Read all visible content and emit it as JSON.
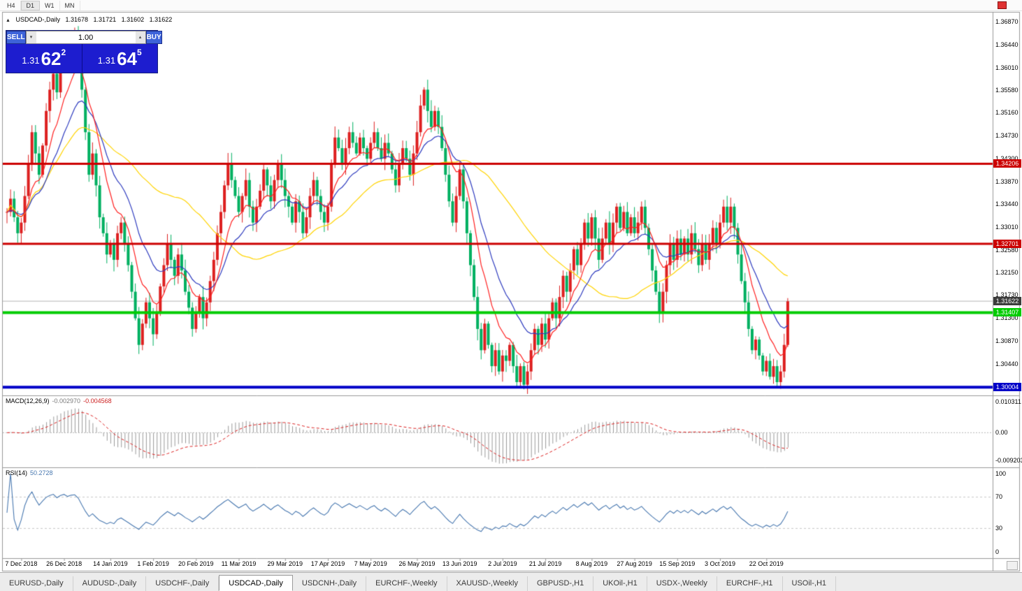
{
  "toolbar": {
    "timeframes": [
      "H4",
      "D1",
      "W1",
      "MN"
    ],
    "active_timeframe": "D1"
  },
  "icons": {
    "collapse_arrow": "▲",
    "spin_up": "▴",
    "spin_down": "▾"
  },
  "chart_header": {
    "symbol": "USDCAD-,Daily",
    "open": "1.31678",
    "high": "1.31721",
    "low": "1.31602",
    "close": "1.31622"
  },
  "one_click": {
    "sell_label": "SELL",
    "buy_label": "BUY",
    "volume": "1.00",
    "price_prefix": "1.31",
    "sell_main": "62",
    "sell_sup": "2",
    "buy_main": "64",
    "buy_sup": "5"
  },
  "macd_panel": {
    "name": "MACD(12,26,9)",
    "main_value": "-0.002970",
    "signal_value": "-0.004568",
    "ticks": [
      "0.010311",
      "0.00",
      "-0.009203"
    ]
  },
  "rsi_panel": {
    "name": "RSI(14)",
    "value": "50.2728",
    "ticks": [
      "100",
      "70",
      "30",
      "0"
    ]
  },
  "price_axis_ticks": [
    "1.36870",
    "1.36440",
    "1.36010",
    "1.35580",
    "1.35160",
    "1.34730",
    "1.34300",
    "1.33870",
    "1.33440",
    "1.33010",
    "1.32580",
    "1.32150",
    "1.31730",
    "1.31300",
    "1.30870",
    "1.30440"
  ],
  "date_labels": [
    {
      "text": "7 Dec 2018",
      "i": 4
    },
    {
      "text": "26 Dec 2018",
      "i": 16
    },
    {
      "text": "14 Jan 2019",
      "i": 29
    },
    {
      "text": "1 Feb 2019",
      "i": 41
    },
    {
      "text": "20 Feb 2019",
      "i": 53
    },
    {
      "text": "11 Mar 2019",
      "i": 65
    },
    {
      "text": "29 Mar 2019",
      "i": 78
    },
    {
      "text": "17 Apr 2019",
      "i": 90
    },
    {
      "text": "7 May 2019",
      "i": 102
    },
    {
      "text": "26 May 2019",
      "i": 115
    },
    {
      "text": "13 Jun 2019",
      "i": 127
    },
    {
      "text": "2 Jul 2019",
      "i": 139
    },
    {
      "text": "21 Jul 2019",
      "i": 151
    },
    {
      "text": "8 Aug 2019",
      "i": 164
    },
    {
      "text": "27 Aug 2019",
      "i": 176
    },
    {
      "text": "15 Sep 2019",
      "i": 188
    },
    {
      "text": "3 Oct 2019",
      "i": 200
    },
    {
      "text": "22 Oct 2019",
      "i": 213
    }
  ],
  "tabs": [
    {
      "label": "EURUSD-,Daily",
      "active": false
    },
    {
      "label": "AUDUSD-,Daily",
      "active": false
    },
    {
      "label": "USDCHF-,Daily",
      "active": false
    },
    {
      "label": "USDCAD-,Daily",
      "active": true
    },
    {
      "label": "USDCNH-,Daily",
      "active": false
    },
    {
      "label": "EURCHF-,Weekly",
      "active": false
    },
    {
      "label": "XAUUSD-,Weekly",
      "active": false
    },
    {
      "label": "GBPUSD-,H1",
      "active": false
    },
    {
      "label": "UKOil-,H1",
      "active": false
    },
    {
      "label": "USDX-,Weekly",
      "active": false
    },
    {
      "label": "EURCHF-,H1",
      "active": false
    },
    {
      "label": "USOil-,H1",
      "active": false
    }
  ],
  "chart_data": {
    "type": "candlestick",
    "symbol": "USDCAD",
    "timeframe": "Daily",
    "title": "USDCAD-,Daily",
    "up_color": "#dd2020",
    "down_color": "#00b060",
    "price_range": [
      1.2985,
      1.3705
    ],
    "closes": [
      1.333,
      1.3355,
      1.332,
      1.329,
      1.331,
      1.336,
      1.342,
      1.348,
      1.344,
      1.34,
      1.3455,
      1.352,
      1.356,
      1.359,
      1.3555,
      1.361,
      1.364,
      1.362,
      1.365,
      1.366,
      1.363,
      1.356,
      1.348,
      1.34,
      1.344,
      1.338,
      1.332,
      1.329,
      1.325,
      1.327,
      1.324,
      1.329,
      1.331,
      1.327,
      1.323,
      1.318,
      1.313,
      1.308,
      1.312,
      1.316,
      1.313,
      1.31,
      1.314,
      1.319,
      1.323,
      1.327,
      1.324,
      1.321,
      1.325,
      1.322,
      1.318,
      1.315,
      1.311,
      1.314,
      1.317,
      1.313,
      1.316,
      1.32,
      1.324,
      1.329,
      1.333,
      1.338,
      1.342,
      1.339,
      1.336,
      1.333,
      1.336,
      1.339,
      1.334,
      1.331,
      1.334,
      1.337,
      1.341,
      1.338,
      1.335,
      1.339,
      1.342,
      1.339,
      1.336,
      1.334,
      1.331,
      1.335,
      1.333,
      1.329,
      1.332,
      1.336,
      1.339,
      1.336,
      1.333,
      1.331,
      1.334,
      1.342,
      1.347,
      1.345,
      1.342,
      1.345,
      1.348,
      1.346,
      1.344,
      1.347,
      1.345,
      1.343,
      1.346,
      1.348,
      1.345,
      1.343,
      1.346,
      1.344,
      1.341,
      1.338,
      1.342,
      1.345,
      1.343,
      1.34,
      1.344,
      1.348,
      1.353,
      1.356,
      1.352,
      1.349,
      1.352,
      1.349,
      1.345,
      1.34,
      1.335,
      1.331,
      1.336,
      1.341,
      1.335,
      1.329,
      1.323,
      1.317,
      1.311,
      1.307,
      1.312,
      1.308,
      1.304,
      1.307,
      1.303,
      1.306,
      1.305,
      1.308,
      1.304,
      1.301,
      1.304,
      1.3005,
      1.303,
      1.307,
      1.311,
      1.308,
      1.312,
      1.309,
      1.313,
      1.316,
      1.313,
      1.317,
      1.321,
      1.318,
      1.322,
      1.326,
      1.323,
      1.327,
      1.331,
      1.328,
      1.332,
      1.328,
      1.324,
      1.328,
      1.331,
      1.327,
      1.331,
      1.334,
      1.33,
      1.333,
      1.329,
      1.332,
      1.329,
      1.331,
      1.334,
      1.33,
      1.326,
      1.322,
      1.318,
      1.314,
      1.318,
      1.323,
      1.327,
      1.324,
      1.328,
      1.325,
      1.328,
      1.325,
      1.329,
      1.326,
      1.323,
      1.327,
      1.324,
      1.327,
      1.33,
      1.327,
      1.331,
      1.334,
      1.331,
      1.334,
      1.33,
      1.325,
      1.32,
      1.316,
      1.311,
      1.307,
      1.309,
      1.306,
      1.303,
      1.305,
      1.302,
      1.304,
      1.301,
      1.303,
      1.308,
      1.3162
    ],
    "moving_averages": [
      {
        "name": "fast",
        "period": 9,
        "kind": "ema",
        "color": "#ff2020"
      },
      {
        "name": "medium",
        "period": 18,
        "kind": "ema",
        "color": "#2e3bbf"
      },
      {
        "name": "slow",
        "period": 45,
        "kind": "sma",
        "color": "#ffd400"
      }
    ],
    "levels": [
      {
        "price": 1.34206,
        "label": "1.34206",
        "color": "#cc0000",
        "thickness": 3
      },
      {
        "price": 1.32701,
        "label": "1.32701",
        "color": "#cc0000",
        "thickness": 3
      },
      {
        "price": 1.31407,
        "label": "1.31407",
        "color": "#00cc00",
        "thickness": 4
      },
      {
        "price": 1.30004,
        "label": "1.30004",
        "color": "#0000c8",
        "thickness": 4
      }
    ],
    "bid": {
      "price": 1.31622,
      "label": "1.31622",
      "line_color": "#b4b4b4",
      "badge_color": "#3c3c3c"
    },
    "macd": {
      "fast": 12,
      "slow": 26,
      "signal": 9,
      "range": [
        -0.009203,
        0.010311
      ],
      "hist_color": "#9a9a9a",
      "signal_color": "#dd2020"
    },
    "rsi": {
      "period": 14,
      "range": [
        0,
        100
      ],
      "levels": [
        70,
        30
      ],
      "color": "#4878b0"
    }
  }
}
